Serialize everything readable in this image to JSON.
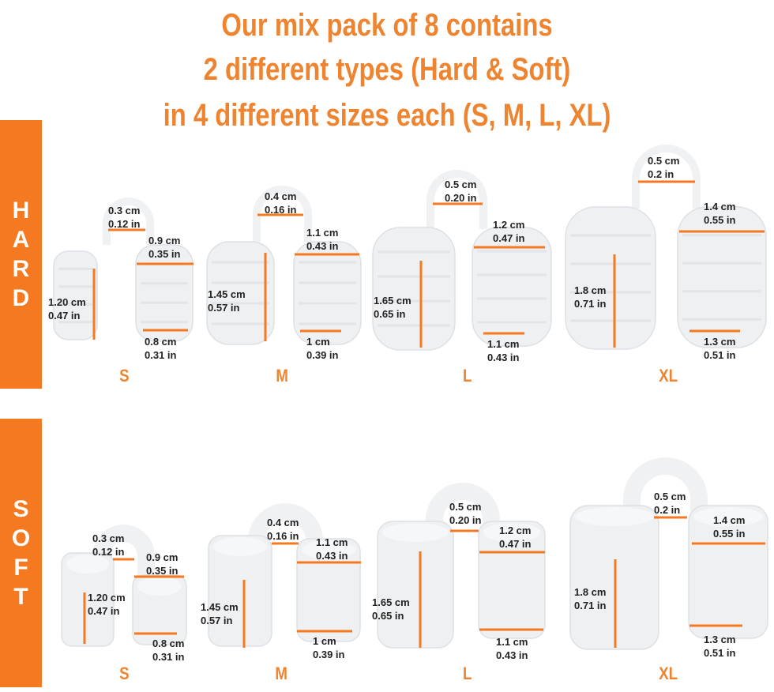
{
  "header": {
    "lines": [
      "Our mix pack of 8 contains",
      "2 different types (Hard & Soft)",
      "in 4 different sizes each (S, M, L, XL)"
    ]
  },
  "colors": {
    "accent": "#f47920",
    "title": "#ee8430",
    "device": "#eef0f2"
  },
  "hard": {
    "label": [
      "H",
      "A",
      "R",
      "D"
    ],
    "sizes": [
      {
        "size": "S",
        "bridge": [
          "0.3 cm",
          "0.12 in"
        ],
        "top": [
          "0.9 cm",
          "0.35 in"
        ],
        "height": [
          "1.20 cm",
          "0.47 in"
        ],
        "bottom": [
          "0.8 cm",
          "0.31 in"
        ]
      },
      {
        "size": "M",
        "bridge": [
          "0.4 cm",
          "0.16 in"
        ],
        "top": [
          "1.1 cm",
          "0.43 in"
        ],
        "height": [
          "1.45 cm",
          "0.57 in"
        ],
        "bottom": [
          "1 cm",
          "0.39 in"
        ]
      },
      {
        "size": "L",
        "bridge": [
          "0.5 cm",
          "0.20 in"
        ],
        "top": [
          "1.2 cm",
          "0.47 in"
        ],
        "height": [
          "1.65 cm",
          "0.65 in"
        ],
        "bottom": [
          "1.1 cm",
          "0.43 in"
        ]
      },
      {
        "size": "XL",
        "bridge": [
          "0.5 cm",
          "0.2 in"
        ],
        "top": [
          "1.4 cm",
          "0.55 in"
        ],
        "height": [
          "1.8 cm",
          "0.71 in"
        ],
        "bottom": [
          "1.3 cm",
          "0.51 in"
        ]
      }
    ]
  },
  "soft": {
    "label": [
      "S",
      "O",
      "F",
      "T"
    ],
    "sizes": [
      {
        "size": "S",
        "bridge": [
          "0.3 cm",
          "0.12 in"
        ],
        "top": [
          "0.9 cm",
          "0.35 in"
        ],
        "height": [
          "1.20 cm",
          "0.47 in"
        ],
        "bottom": [
          "0.8 cm",
          "0.31 in"
        ]
      },
      {
        "size": "M",
        "bridge": [
          "0.4 cm",
          "0.16 in"
        ],
        "top": [
          "1.1 cm",
          "0.43 in"
        ],
        "height": [
          "1.45 cm",
          "0.57 in"
        ],
        "bottom": [
          "1 cm",
          "0.39 in"
        ]
      },
      {
        "size": "L",
        "bridge": [
          "0.5 cm",
          "0.20 in"
        ],
        "top": [
          "1.2 cm",
          "0.47 in"
        ],
        "height": [
          "1.65 cm",
          "0.65 in"
        ],
        "bottom": [
          "1.1 cm",
          "0.43 in"
        ]
      },
      {
        "size": "XL",
        "bridge": [
          "0.5 cm",
          "0.2 in"
        ],
        "top": [
          "1.4 cm",
          "0.55 in"
        ],
        "height": [
          "1.8 cm",
          "0.71 in"
        ],
        "bottom": [
          "1.3 cm",
          "0.51 in"
        ]
      }
    ]
  }
}
